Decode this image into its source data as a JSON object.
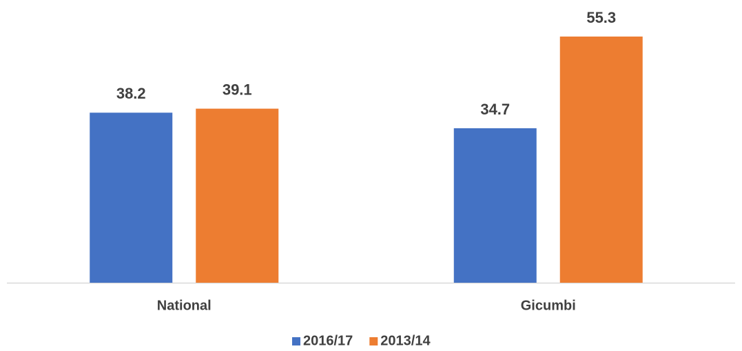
{
  "chart_data": {
    "type": "bar",
    "categories": [
      "National",
      "Gicumbi"
    ],
    "series": [
      {
        "name": "2016/17",
        "color": "#4472c4",
        "values": [
          38.2,
          34.7
        ]
      },
      {
        "name": "2013/14",
        "color": "#ed7d31",
        "values": [
          39.1,
          55.3
        ]
      }
    ],
    "legend": "bottom"
  }
}
